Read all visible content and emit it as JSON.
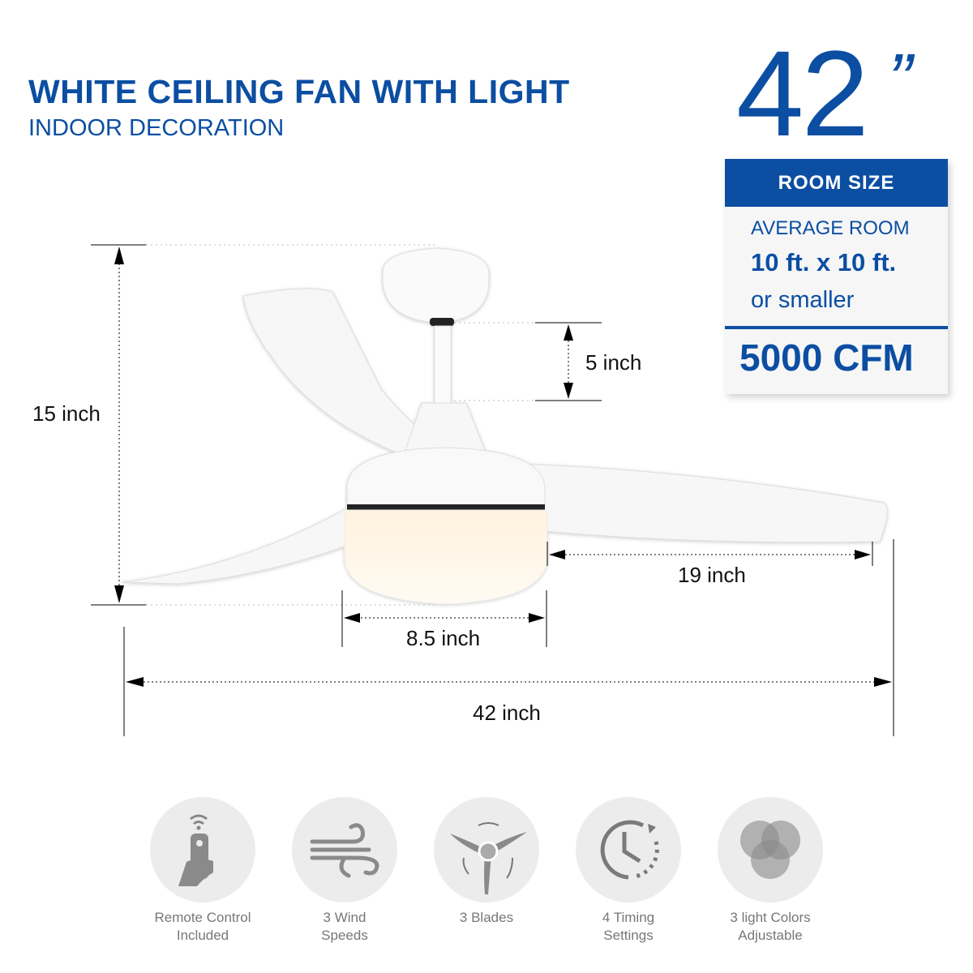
{
  "header": {
    "title": "WHITE CEILING FAN WITH LIGHT",
    "subtitle": "INDOOR DECORATION"
  },
  "size_badge": {
    "value": "42",
    "unit_mark": "”"
  },
  "room_card": {
    "heading": "ROOM SIZE",
    "line1": "AVERAGE ROOM",
    "line2": "10 ft. x 10 ft.",
    "line3": "or smaller",
    "airflow": "5000 CFM"
  },
  "dimensions": {
    "height": "15 inch",
    "downrod": "5 inch",
    "blade": "19 inch",
    "light": "8.5 inch",
    "span": "42 inch"
  },
  "features": [
    {
      "icon": "remote-control-icon",
      "line1": "Remote Control",
      "line2": "Included"
    },
    {
      "icon": "wind-icon",
      "line1": "3 Wind",
      "line2": "Speeds"
    },
    {
      "icon": "blades-icon",
      "line1": "3 Blades",
      "line2": ""
    },
    {
      "icon": "timer-icon",
      "line1": "4 Timing",
      "line2": "Settings"
    },
    {
      "icon": "light-colors-icon",
      "line1": "3 light Colors",
      "line2": "Adjustable"
    }
  ],
  "colors": {
    "brand_blue": "#0b4ea2",
    "icon_gray": "#8a8a8a",
    "circle_bg": "#ececec"
  }
}
